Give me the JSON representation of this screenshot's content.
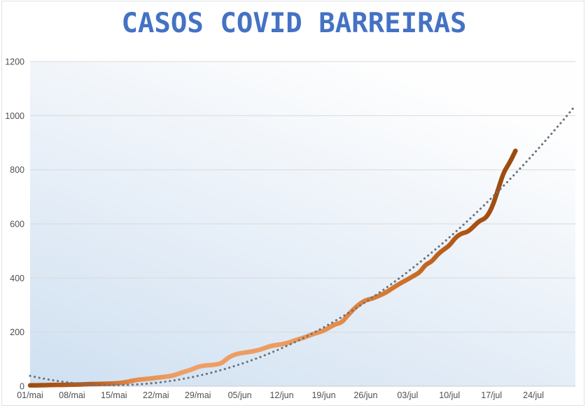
{
  "chart": {
    "title": "CASOS COVID BARREIRAS"
  },
  "colors": {
    "title_text": "#4472c4",
    "axis_text": "#4f4f4f",
    "gridline": "#d9d9d9",
    "axis_line": "#cccccc",
    "frame_border": "#dde2e9",
    "trend_dots": "#68727c",
    "plot_bg_bottom_left": "#cfe0f1",
    "plot_bg_mid": "#e9f0f8",
    "plot_bg_top_right": "#fefefe",
    "line_gradient_stops": [
      {
        "offset": 0.0,
        "color": "#9d4d13"
      },
      {
        "offset": 0.05,
        "color": "#aa5317"
      },
      {
        "offset": 0.13,
        "color": "#b85e1e"
      },
      {
        "offset": 0.22,
        "color": "#e68f50"
      },
      {
        "offset": 0.32,
        "color": "#efa066"
      },
      {
        "offset": 0.55,
        "color": "#ed9a5e"
      },
      {
        "offset": 0.7,
        "color": "#dd8038"
      },
      {
        "offset": 0.82,
        "color": "#c2661f"
      },
      {
        "offset": 0.92,
        "color": "#a85013"
      },
      {
        "offset": 1.0,
        "color": "#9a4a10"
      }
    ]
  },
  "chart_data": {
    "type": "line",
    "title": "CASOS COVID BARREIRAS",
    "xlabel": "",
    "ylabel": "",
    "x_tick_labels": [
      "01/mai",
      "08/mai",
      "15/mai",
      "22/mai",
      "29/mai",
      "05/jun",
      "12/jun",
      "19/jun",
      "26/jun",
      "03/jul",
      "10/jul",
      "17/jul",
      "24/jul"
    ],
    "x_tick_interval_days": 7,
    "x_domain_days": [
      0,
      91
    ],
    "y_ticks": [
      0,
      200,
      400,
      600,
      800,
      1000,
      1200
    ],
    "ylim": [
      0,
      1200
    ],
    "grid": "horizontal-major",
    "legend": "none",
    "series": [
      {
        "name": "casos-acumulados",
        "style": "smooth-thick-line-orange-gradient",
        "start_day": 0,
        "step_days": 1,
        "values": [
          3,
          3,
          4,
          4,
          5,
          5,
          5,
          6,
          6,
          7,
          8,
          8,
          9,
          9,
          10,
          12,
          15,
          20,
          24,
          26,
          28,
          31,
          34,
          36,
          40,
          48,
          55,
          62,
          72,
          76,
          78,
          80,
          85,
          105,
          116,
          122,
          125,
          128,
          133,
          140,
          148,
          152,
          155,
          160,
          168,
          175,
          182,
          191,
          198,
          205,
          218,
          230,
          235,
          262,
          285,
          305,
          318,
          323,
          332,
          342,
          355,
          370,
          383,
          395,
          408,
          420,
          450,
          460,
          487,
          505,
          520,
          550,
          565,
          570,
          590,
          612,
          620,
          655,
          720,
          790,
          825,
          870
        ]
      }
    ],
    "trendline": {
      "name": "tendencia-polinomial",
      "kind": "polynomial-order-2",
      "style": "gray-round-dots",
      "a": 0.1743,
      "vertex_day": 14,
      "vertex_value": 4,
      "day_start": 0,
      "day_end": 91,
      "weekly_values": [
        38,
        13,
        4,
        13,
        38,
        81,
        141,
        217,
        312,
        423,
        551,
        697,
        859,
        1039
      ]
    }
  }
}
